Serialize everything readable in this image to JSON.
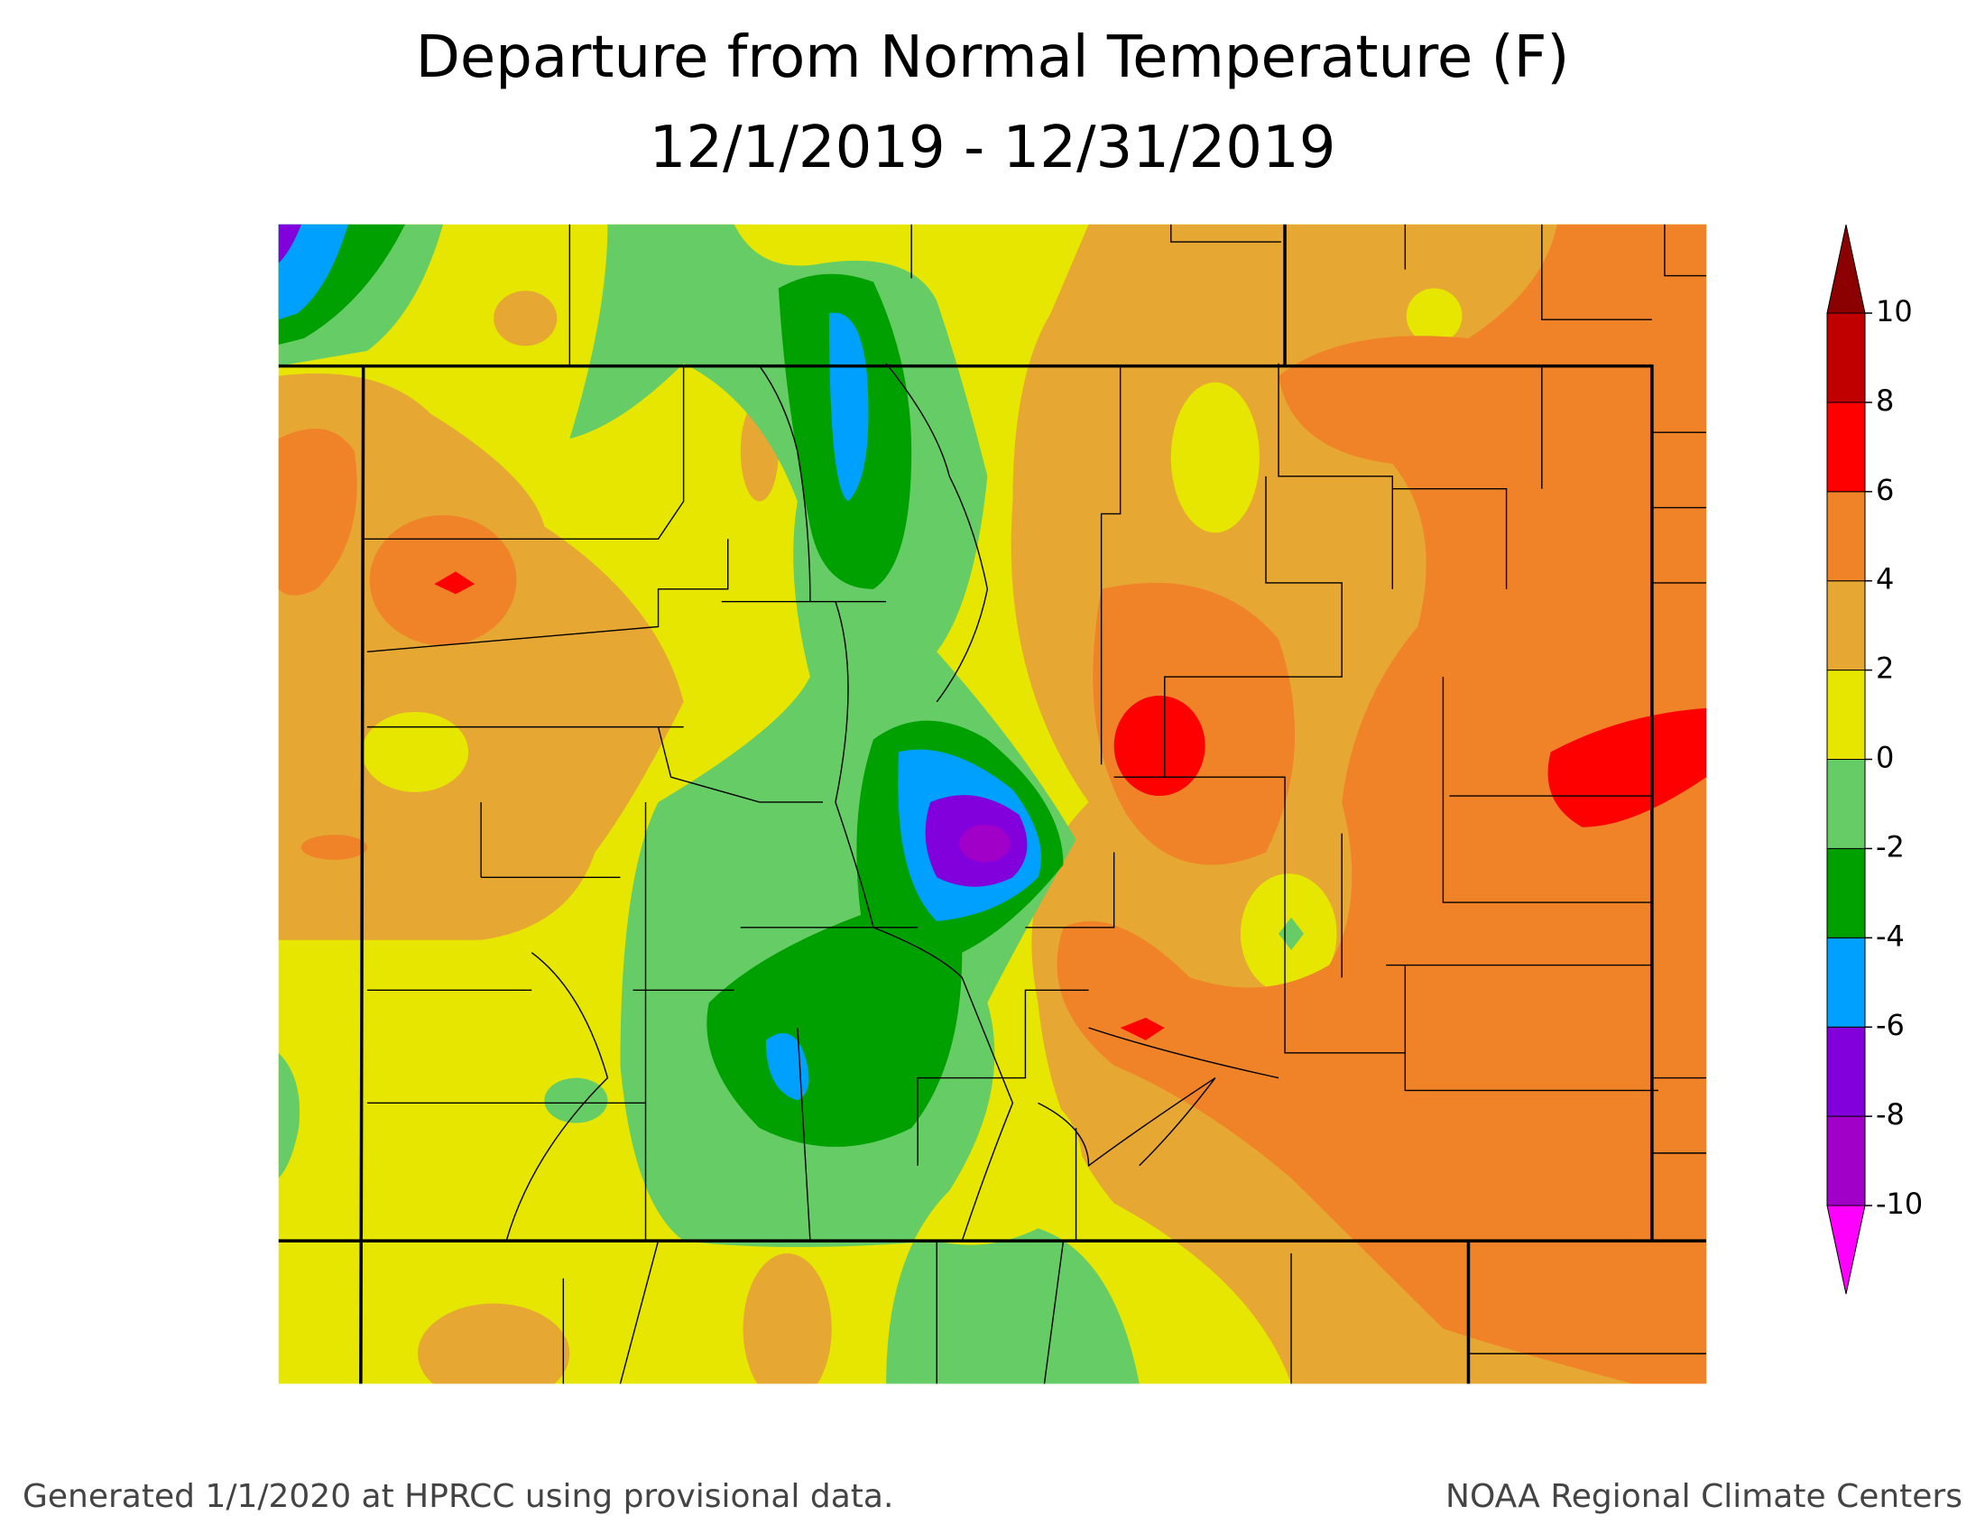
{
  "title": [
    "Departure from Normal Temperature (F)",
    "12/1/2019 - 12/31/2019"
  ],
  "legend": {
    "ticks": [
      -10,
      -8,
      -6,
      -4,
      -2,
      0,
      2,
      4,
      6,
      8,
      10
    ],
    "colors": [
      "#ff00ff",
      "#a000c8",
      "#8200dc",
      "#00a0ff",
      "#00a000",
      "#66cc66",
      "#e6e600",
      "#e6a832",
      "#f08228",
      "#ff0000",
      "#c00000",
      "#8b0000"
    ]
  },
  "footer": {
    "left": "Generated 1/1/2020 at HPRCC using provisional data.",
    "right": "NOAA Regional Climate Centers"
  }
}
